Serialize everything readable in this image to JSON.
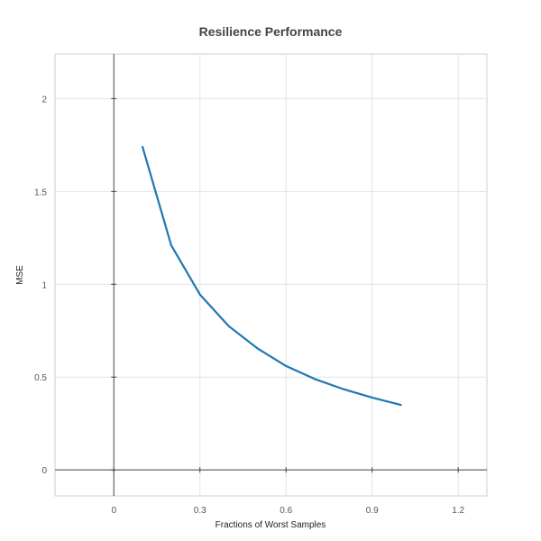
{
  "chart_data": {
    "type": "line",
    "title": "Resilience Performance",
    "xlabel": "Fractions of Worst Samples",
    "ylabel": "MSE",
    "xlim": [
      -0.205,
      1.3
    ],
    "ylim": [
      -0.14,
      2.24
    ],
    "xticks": [
      0,
      0.3,
      0.6,
      0.9,
      1.2
    ],
    "xtick_labels": [
      "0",
      "0.3",
      "0.6",
      "0.9",
      "1.2"
    ],
    "yticks": [
      0,
      0.5,
      1,
      1.5,
      2
    ],
    "ytick_labels": [
      "0",
      "0.5",
      "1",
      "1.5",
      "2"
    ],
    "grid": true,
    "series": [
      {
        "x": [
          0.1,
          0.2,
          0.3,
          0.4,
          0.5,
          0.6,
          0.7,
          0.8,
          0.9,
          1.0
        ],
        "values": [
          1.74,
          1.21,
          0.945,
          0.775,
          0.655,
          0.56,
          0.49,
          0.435,
          0.39,
          0.35
        ],
        "color": "#1f77b4"
      }
    ]
  }
}
